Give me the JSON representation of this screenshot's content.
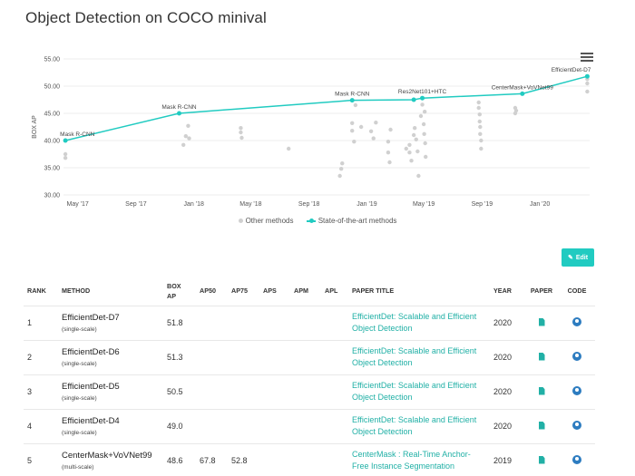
{
  "page": {
    "title": "Object Detection on COCO minival"
  },
  "chart_data": {
    "type": "scatter",
    "ylabel": "BOX AP",
    "ylim": [
      30,
      55
    ],
    "y_ticks": [
      "55.00",
      "50.00",
      "45.00",
      "40.00",
      "35.00",
      "30.00"
    ],
    "x_range": [
      "2017-04-01",
      "2020-04-15"
    ],
    "x_ticks": [
      {
        "label": "May '17",
        "date": "2017-05-01"
      },
      {
        "label": "Sep '17",
        "date": "2017-09-01"
      },
      {
        "label": "Jan '18",
        "date": "2018-01-01"
      },
      {
        "label": "May '18",
        "date": "2018-05-01"
      },
      {
        "label": "Sep '18",
        "date": "2018-09-01"
      },
      {
        "label": "Jan '19",
        "date": "2019-01-01"
      },
      {
        "label": "May '19",
        "date": "2019-05-01"
      },
      {
        "label": "Sep '19",
        "date": "2019-09-01"
      },
      {
        "label": "Jan '20",
        "date": "2020-01-01"
      }
    ],
    "legend": [
      "Other methods",
      "State-of-the-art methods"
    ],
    "colors": {
      "sota": "#21cbc1",
      "other": "#d0d0d0"
    },
    "series": [
      {
        "name": "State-of-the-art methods",
        "points": [
          {
            "date": "2017-04-05",
            "y": 40.0,
            "label": "Mask R-CNN"
          },
          {
            "date": "2017-12-01",
            "y": 45.0,
            "label": "Mask R-CNN"
          },
          {
            "date": "2018-12-01",
            "y": 47.4,
            "label": "Mask R-CNN"
          },
          {
            "date": "2019-04-10",
            "y": 47.5,
            "label": ""
          },
          {
            "date": "2019-04-28",
            "y": 47.8,
            "label": "Res2Net101+HTC"
          },
          {
            "date": "2019-11-25",
            "y": 48.6,
            "label": "CenterMask+VoVNet99"
          },
          {
            "date": "2020-04-10",
            "y": 51.8,
            "label": "EfficientDet-D7"
          }
        ]
      },
      {
        "name": "Other methods",
        "points": [
          {
            "date": "2017-04-05",
            "y": 37.5
          },
          {
            "date": "2017-04-05",
            "y": 36.8
          },
          {
            "date": "2017-12-15",
            "y": 40.8
          },
          {
            "date": "2017-12-10",
            "y": 39.2
          },
          {
            "date": "2017-12-20",
            "y": 42.7
          },
          {
            "date": "2017-12-22",
            "y": 40.4
          },
          {
            "date": "2018-04-10",
            "y": 42.3
          },
          {
            "date": "2018-04-10",
            "y": 41.5
          },
          {
            "date": "2018-04-12",
            "y": 40.5
          },
          {
            "date": "2018-07-20",
            "y": 38.5
          },
          {
            "date": "2018-11-05",
            "y": 33.5
          },
          {
            "date": "2018-11-08",
            "y": 34.8
          },
          {
            "date": "2018-11-10",
            "y": 35.8
          },
          {
            "date": "2018-12-01",
            "y": 43.2
          },
          {
            "date": "2018-12-01",
            "y": 41.8
          },
          {
            "date": "2018-12-05",
            "y": 39.8
          },
          {
            "date": "2018-12-08",
            "y": 46.5
          },
          {
            "date": "2018-12-20",
            "y": 42.5
          },
          {
            "date": "2019-01-10",
            "y": 41.7
          },
          {
            "date": "2019-01-15",
            "y": 40.4
          },
          {
            "date": "2019-01-20",
            "y": 43.3
          },
          {
            "date": "2019-02-15",
            "y": 39.8
          },
          {
            "date": "2019-02-15",
            "y": 37.8
          },
          {
            "date": "2019-02-18",
            "y": 36.0
          },
          {
            "date": "2019-02-20",
            "y": 42.0
          },
          {
            "date": "2019-03-25",
            "y": 38.5
          },
          {
            "date": "2019-04-01",
            "y": 39.2
          },
          {
            "date": "2019-04-01",
            "y": 37.8
          },
          {
            "date": "2019-04-05",
            "y": 36.3
          },
          {
            "date": "2019-04-10",
            "y": 41.0
          },
          {
            "date": "2019-04-12",
            "y": 42.3
          },
          {
            "date": "2019-04-15",
            "y": 40.2
          },
          {
            "date": "2019-04-18",
            "y": 38.0
          },
          {
            "date": "2019-04-20",
            "y": 33.5
          },
          {
            "date": "2019-04-25",
            "y": 44.5
          },
          {
            "date": "2019-04-28",
            "y": 46.6
          },
          {
            "date": "2019-05-01",
            "y": 43.0
          },
          {
            "date": "2019-05-02",
            "y": 41.2
          },
          {
            "date": "2019-05-04",
            "y": 39.5
          },
          {
            "date": "2019-05-05",
            "y": 37.0
          },
          {
            "date": "2019-05-03",
            "y": 45.3
          },
          {
            "date": "2019-08-25",
            "y": 47.0
          },
          {
            "date": "2019-08-25",
            "y": 46.0
          },
          {
            "date": "2019-08-27",
            "y": 44.8
          },
          {
            "date": "2019-08-27",
            "y": 43.5
          },
          {
            "date": "2019-08-28",
            "y": 42.5
          },
          {
            "date": "2019-08-28",
            "y": 41.2
          },
          {
            "date": "2019-08-30",
            "y": 40.0
          },
          {
            "date": "2019-08-30",
            "y": 38.5
          },
          {
            "date": "2019-11-10",
            "y": 46.0
          },
          {
            "date": "2019-11-10",
            "y": 45.0
          },
          {
            "date": "2019-11-12",
            "y": 45.5
          },
          {
            "date": "2020-04-10",
            "y": 51.3
          },
          {
            "date": "2020-04-10",
            "y": 50.5
          },
          {
            "date": "2020-04-10",
            "y": 49.0
          }
        ]
      }
    ]
  },
  "toolbar": {
    "edit_label": "Edit"
  },
  "table": {
    "headers": {
      "rank": "RANK",
      "method": "METHOD",
      "box_ap": "BOX AP",
      "ap50": "AP50",
      "ap75": "AP75",
      "aps": "APS",
      "apm": "APM",
      "apl": "APL",
      "paper_title": "PAPER TITLE",
      "year": "YEAR",
      "paper": "PAPER",
      "code": "CODE"
    },
    "rows": [
      {
        "rank": "1",
        "method": "EfficientDet-D7",
        "sub": "(single-scale)",
        "box_ap": "51.8",
        "ap50": "",
        "ap75": "",
        "aps": "",
        "apm": "",
        "apl": "",
        "paper_line1": "EfficientDet: Scalable and Efficient",
        "paper_line2": "Object Detection",
        "year": "2020"
      },
      {
        "rank": "2",
        "method": "EfficientDet-D6",
        "sub": "(single-scale)",
        "box_ap": "51.3",
        "ap50": "",
        "ap75": "",
        "aps": "",
        "apm": "",
        "apl": "",
        "paper_line1": "EfficientDet: Scalable and Efficient",
        "paper_line2": "Object Detection",
        "year": "2020"
      },
      {
        "rank": "3",
        "method": "EfficientDet-D5",
        "sub": "(single-scale)",
        "box_ap": "50.5",
        "ap50": "",
        "ap75": "",
        "aps": "",
        "apm": "",
        "apl": "",
        "paper_line1": "EfficientDet: Scalable and Efficient",
        "paper_line2": "Object Detection",
        "year": "2020"
      },
      {
        "rank": "4",
        "method": "EfficientDet-D4",
        "sub": "(single-scale)",
        "box_ap": "49.0",
        "ap50": "",
        "ap75": "",
        "aps": "",
        "apm": "",
        "apl": "",
        "paper_line1": "EfficientDet: Scalable and Efficient",
        "paper_line2": "Object Detection",
        "year": "2020"
      },
      {
        "rank": "5",
        "method": "CenterMask+VoVNet99",
        "sub": "(multi-scale)",
        "box_ap": "48.6",
        "ap50": "67.8",
        "ap75": "52.8",
        "aps": "",
        "apm": "",
        "apl": "",
        "paper_line1": "CenterMask : Real-Time Anchor-",
        "paper_line2": "Free Instance Segmentation",
        "year": "2019"
      }
    ]
  }
}
